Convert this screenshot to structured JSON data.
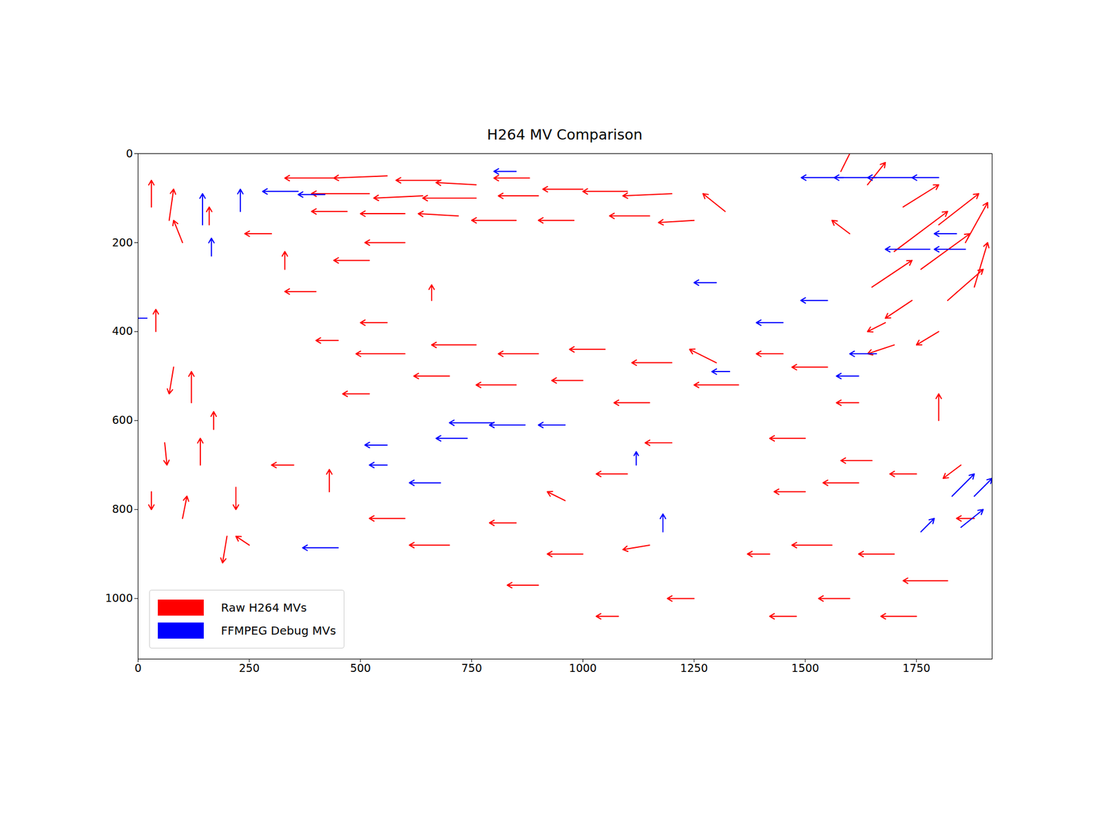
{
  "chart_data": {
    "type": "quiver",
    "title": "H264 MV Comparison",
    "xlim": [
      0,
      1920
    ],
    "ylim": [
      1136,
      0
    ],
    "xticks": [
      0,
      250,
      500,
      750,
      1000,
      1250,
      1500,
      1750
    ],
    "yticks": [
      0,
      200,
      400,
      600,
      800,
      1000
    ],
    "grid": false,
    "legend": "lower left",
    "series": [
      {
        "name": "Raw H264 MVs",
        "color": "#ff0000",
        "values": [
          [
            440,
            55,
            -110,
            0
          ],
          [
            560,
            50,
            -120,
            5
          ],
          [
            680,
            60,
            -100,
            0
          ],
          [
            760,
            70,
            -90,
            -5
          ],
          [
            880,
            55,
            -80,
            0
          ],
          [
            520,
            90,
            -130,
            0
          ],
          [
            640,
            95,
            -110,
            5
          ],
          [
            760,
            100,
            -120,
            0
          ],
          [
            900,
            95,
            -90,
            0
          ],
          [
            470,
            130,
            -80,
            0
          ],
          [
            600,
            135,
            -100,
            0
          ],
          [
            720,
            140,
            -90,
            -5
          ],
          [
            850,
            150,
            -100,
            0
          ],
          [
            980,
            150,
            -80,
            0
          ],
          [
            1000,
            80,
            -90,
            0
          ],
          [
            1100,
            85,
            -100,
            0
          ],
          [
            1200,
            90,
            -110,
            5
          ],
          [
            1150,
            140,
            -90,
            0
          ],
          [
            1250,
            150,
            -80,
            5
          ],
          [
            1320,
            130,
            -50,
            -40
          ],
          [
            1580,
            40,
            30,
            -60
          ],
          [
            1640,
            70,
            40,
            -50
          ],
          [
            1720,
            120,
            80,
            -50
          ],
          [
            1800,
            160,
            90,
            -70
          ],
          [
            1860,
            200,
            50,
            -90
          ],
          [
            1700,
            220,
            120,
            -90
          ],
          [
            1760,
            260,
            110,
            -80
          ],
          [
            1650,
            300,
            90,
            -60
          ],
          [
            1820,
            330,
            80,
            -70
          ],
          [
            1880,
            300,
            30,
            -100
          ],
          [
            1600,
            180,
            -40,
            -30
          ],
          [
            1740,
            330,
            -60,
            40
          ],
          [
            1800,
            400,
            -50,
            30
          ],
          [
            1680,
            380,
            -40,
            20
          ],
          [
            30,
            120,
            0,
            -60
          ],
          [
            70,
            150,
            10,
            -70
          ],
          [
            100,
            200,
            -20,
            -50
          ],
          [
            160,
            160,
            0,
            -40
          ],
          [
            40,
            400,
            0,
            -50
          ],
          [
            80,
            480,
            -10,
            60
          ],
          [
            120,
            560,
            0,
            -70
          ],
          [
            60,
            650,
            5,
            50
          ],
          [
            140,
            700,
            0,
            -60
          ],
          [
            30,
            760,
            0,
            40
          ],
          [
            100,
            820,
            10,
            -50
          ],
          [
            200,
            860,
            -10,
            60
          ],
          [
            170,
            620,
            0,
            -40
          ],
          [
            220,
            750,
            0,
            50
          ],
          [
            250,
            880,
            -30,
            -20
          ],
          [
            300,
            180,
            -60,
            0
          ],
          [
            330,
            260,
            0,
            -40
          ],
          [
            400,
            310,
            -70,
            0
          ],
          [
            520,
            240,
            -80,
            0
          ],
          [
            600,
            200,
            -90,
            0
          ],
          [
            660,
            330,
            0,
            -35
          ],
          [
            560,
            380,
            -60,
            0
          ],
          [
            450,
            420,
            -50,
            0
          ],
          [
            600,
            450,
            -110,
            0
          ],
          [
            760,
            430,
            -100,
            0
          ],
          [
            900,
            450,
            -90,
            0
          ],
          [
            1050,
            440,
            -80,
            0
          ],
          [
            1200,
            470,
            -90,
            0
          ],
          [
            1350,
            520,
            -100,
            0
          ],
          [
            700,
            500,
            -80,
            0
          ],
          [
            850,
            520,
            -90,
            0
          ],
          [
            1000,
            510,
            -70,
            0
          ],
          [
            1150,
            560,
            -80,
            0
          ],
          [
            520,
            540,
            -60,
            0
          ],
          [
            1300,
            470,
            -60,
            -30
          ],
          [
            1450,
            450,
            -60,
            0
          ],
          [
            1550,
            480,
            -80,
            0
          ],
          [
            1700,
            430,
            -60,
            20
          ],
          [
            1620,
            560,
            -50,
            0
          ],
          [
            1800,
            600,
            0,
            -60
          ],
          [
            1500,
            640,
            -80,
            0
          ],
          [
            1650,
            690,
            -70,
            0
          ],
          [
            350,
            700,
            -50,
            0
          ],
          [
            430,
            760,
            0,
            -50
          ],
          [
            600,
            820,
            -80,
            0
          ],
          [
            700,
            880,
            -90,
            0
          ],
          [
            850,
            830,
            -60,
            0
          ],
          [
            960,
            780,
            -40,
            -20
          ],
          [
            1100,
            720,
            -70,
            0
          ],
          [
            1200,
            650,
            -60,
            0
          ],
          [
            1000,
            900,
            -80,
            0
          ],
          [
            1150,
            880,
            -60,
            10
          ],
          [
            900,
            970,
            -70,
            0
          ],
          [
            1250,
            1000,
            -60,
            0
          ],
          [
            1080,
            1040,
            -50,
            0
          ],
          [
            1500,
            760,
            -70,
            0
          ],
          [
            1620,
            740,
            -80,
            0
          ],
          [
            1750,
            720,
            -60,
            0
          ],
          [
            1850,
            700,
            -40,
            30
          ],
          [
            1560,
            880,
            -90,
            0
          ],
          [
            1700,
            900,
            -80,
            0
          ],
          [
            1820,
            960,
            -100,
            0
          ],
          [
            1600,
            1000,
            -70,
            0
          ],
          [
            1480,
            1040,
            -60,
            0
          ],
          [
            1750,
            1040,
            -80,
            0
          ],
          [
            1420,
            900,
            -50,
            0
          ],
          [
            1880,
            820,
            -40,
            0
          ]
        ]
      },
      {
        "name": "FFMPEG Debug MVs",
        "color": "#0000ff",
        "values": [
          [
            1586,
            54,
            -95,
            0
          ],
          [
            1660,
            54,
            -95,
            0
          ],
          [
            1740,
            54,
            -100,
            0
          ],
          [
            1800,
            54,
            -60,
            0
          ],
          [
            1780,
            215,
            -100,
            0
          ],
          [
            1860,
            215,
            -70,
            0
          ],
          [
            1840,
            180,
            -50,
            0
          ],
          [
            360,
            85,
            -80,
            0
          ],
          [
            420,
            92,
            -60,
            0
          ],
          [
            850,
            40,
            -50,
            0
          ],
          [
            230,
            130,
            0,
            -50
          ],
          [
            145,
            160,
            0,
            -70
          ],
          [
            165,
            230,
            0,
            -40
          ],
          [
            800,
            605,
            -100,
            0
          ],
          [
            870,
            610,
            -80,
            0
          ],
          [
            740,
            640,
            -70,
            0
          ],
          [
            960,
            610,
            -60,
            0
          ],
          [
            1660,
            450,
            -60,
            0
          ],
          [
            1620,
            500,
            -50,
            0
          ],
          [
            1330,
            490,
            -40,
            0
          ],
          [
            1830,
            770,
            50,
            -50
          ],
          [
            1880,
            770,
            40,
            -40
          ],
          [
            1850,
            840,
            50,
            -40
          ],
          [
            1760,
            850,
            30,
            -30
          ],
          [
            450,
            886,
            -80,
            0
          ],
          [
            680,
            740,
            -70,
            0
          ],
          [
            560,
            700,
            -40,
            0
          ],
          [
            1180,
            850,
            0,
            -40
          ],
          [
            1120,
            700,
            0,
            -30
          ],
          [
            560,
            655,
            -50,
            0
          ],
          [
            20,
            370,
            -30,
            0
          ],
          [
            1450,
            380,
            -60,
            0
          ],
          [
            1300,
            290,
            -50,
            0
          ],
          [
            1550,
            330,
            -60,
            0
          ]
        ]
      }
    ]
  }
}
